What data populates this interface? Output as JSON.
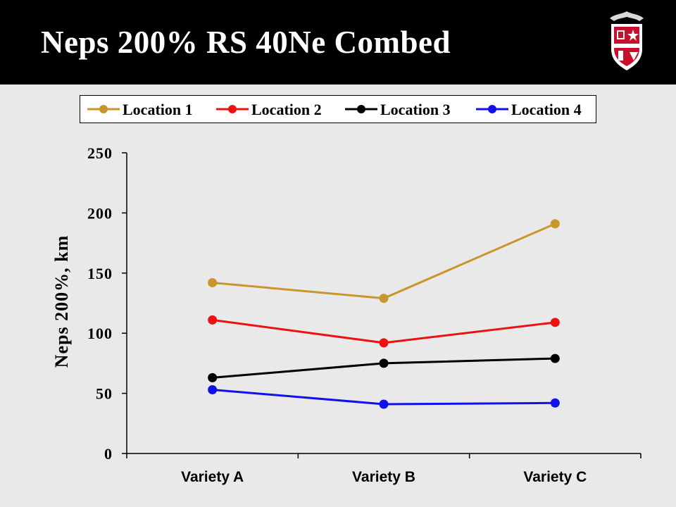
{
  "slide": {
    "title": "Neps 200% RS 40Ne Combed",
    "header_color": "#000000",
    "background_color": "#e9e9e9",
    "logo": "texas-tech-seal-icon"
  },
  "chart_data": {
    "type": "line",
    "title": "",
    "xlabel": "",
    "ylabel": "Neps 200%, km",
    "categories": [
      "Variety A",
      "Variety B",
      "Variety C"
    ],
    "ylim": [
      0,
      250
    ],
    "yticks": [
      0,
      50,
      100,
      150,
      200,
      250
    ],
    "grid": false,
    "legend_position": "top",
    "series": [
      {
        "name": "Location 1",
        "color": "#c8962a",
        "values": [
          142,
          129,
          191
        ]
      },
      {
        "name": "Location 2",
        "color": "#ee1111",
        "values": [
          111,
          92,
          109
        ]
      },
      {
        "name": "Location 3",
        "color": "#000000",
        "values": [
          63,
          75,
          79
        ]
      },
      {
        "name": "Location 4",
        "color": "#1111ee",
        "values": [
          53,
          41,
          42
        ]
      }
    ]
  }
}
